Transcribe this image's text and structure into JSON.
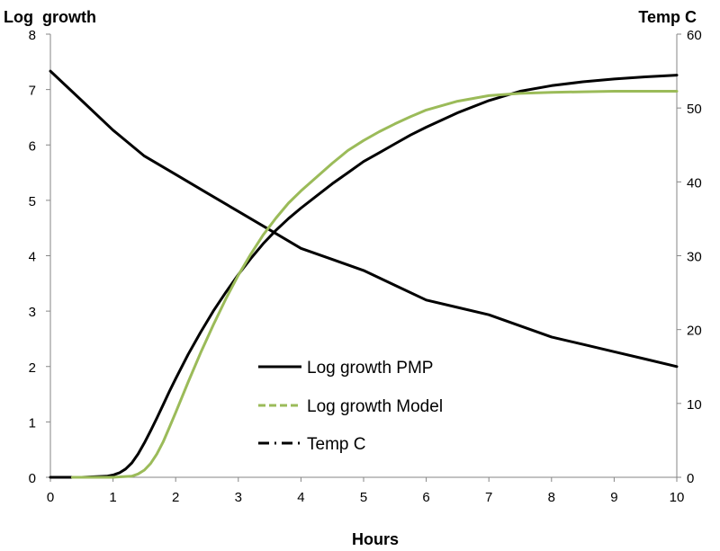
{
  "chart_data": {
    "type": "line",
    "xlabel": "Hours",
    "ylabel_left": "Log  growth",
    "ylabel_right": "Temp C",
    "xlim": [
      0,
      10
    ],
    "ylim_left": [
      0,
      8
    ],
    "ylim_right": [
      0,
      60
    ],
    "x_ticks": [
      "0",
      "1",
      "2",
      "3",
      "4",
      "5",
      "6",
      "7",
      "8",
      "9",
      "10"
    ],
    "y_left_ticks": [
      "0",
      "1",
      "2",
      "3",
      "4",
      "5",
      "6",
      "7",
      "8"
    ],
    "y_right_ticks": [
      "0",
      "10",
      "20",
      "30",
      "40",
      "50",
      "60"
    ],
    "grid": false,
    "legend_position": "center-bottom",
    "colors": {
      "pmp": "#000000",
      "model": "#9bbb59",
      "temp": "#000000"
    },
    "series": [
      {
        "name": "Log growth PMP",
        "axis": "left",
        "style": "solid",
        "x": [
          0,
          0.5,
          0.9,
          1.0,
          1.1,
          1.2,
          1.3,
          1.4,
          1.5,
          1.6,
          1.7,
          1.8,
          1.9,
          2.0,
          2.2,
          2.4,
          2.6,
          2.8,
          3.0,
          3.2,
          3.4,
          3.6,
          3.8,
          4.0,
          4.25,
          4.5,
          4.75,
          5.0,
          5.25,
          5.5,
          5.75,
          6.0,
          6.5,
          7.0,
          7.5,
          8.0,
          8.5,
          9.0,
          9.5,
          10.0
        ],
        "y": [
          0,
          0,
          0.02,
          0.04,
          0.08,
          0.15,
          0.26,
          0.42,
          0.62,
          0.84,
          1.07,
          1.31,
          1.55,
          1.78,
          2.22,
          2.62,
          3.0,
          3.34,
          3.66,
          3.95,
          4.22,
          4.46,
          4.67,
          4.86,
          5.08,
          5.3,
          5.5,
          5.7,
          5.86,
          6.02,
          6.18,
          6.32,
          6.58,
          6.8,
          6.97,
          7.07,
          7.14,
          7.19,
          7.23,
          7.26
        ]
      },
      {
        "name": "Log growth Model",
        "axis": "left",
        "style": "dashed",
        "x": [
          0.35,
          1.0,
          1.3,
          1.4,
          1.5,
          1.6,
          1.7,
          1.8,
          1.9,
          2.0,
          2.2,
          2.4,
          2.6,
          2.8,
          3.0,
          3.2,
          3.4,
          3.6,
          3.8,
          4.0,
          4.25,
          4.5,
          4.75,
          5.0,
          5.25,
          5.5,
          5.75,
          6.0,
          6.5,
          7.0,
          7.5,
          8.0,
          8.5,
          9.0,
          9.5,
          10.0
        ],
        "y": [
          0,
          0,
          0.02,
          0.06,
          0.13,
          0.25,
          0.42,
          0.64,
          0.9,
          1.17,
          1.72,
          2.25,
          2.75,
          3.22,
          3.65,
          4.03,
          4.38,
          4.68,
          4.95,
          5.17,
          5.42,
          5.67,
          5.9,
          6.08,
          6.24,
          6.38,
          6.51,
          6.63,
          6.79,
          6.89,
          6.93,
          6.95,
          6.96,
          6.97,
          6.97,
          6.97
        ]
      },
      {
        "name": "Temp C",
        "axis": "right",
        "style": "dash-dot",
        "x": [
          0,
          0.5,
          1.0,
          1.5,
          2.0,
          2.5,
          3.0,
          3.5,
          4.0,
          4.5,
          5.0,
          5.5,
          6.0,
          6.5,
          7.0,
          7.5,
          8.0,
          8.5,
          9.0,
          9.5,
          10.0
        ],
        "y": [
          55,
          51,
          47,
          43.5,
          41,
          38.5,
          36,
          33.5,
          31,
          29.5,
          28,
          26,
          24,
          23,
          22,
          20.5,
          19,
          18,
          17,
          16,
          15
        ]
      }
    ]
  }
}
